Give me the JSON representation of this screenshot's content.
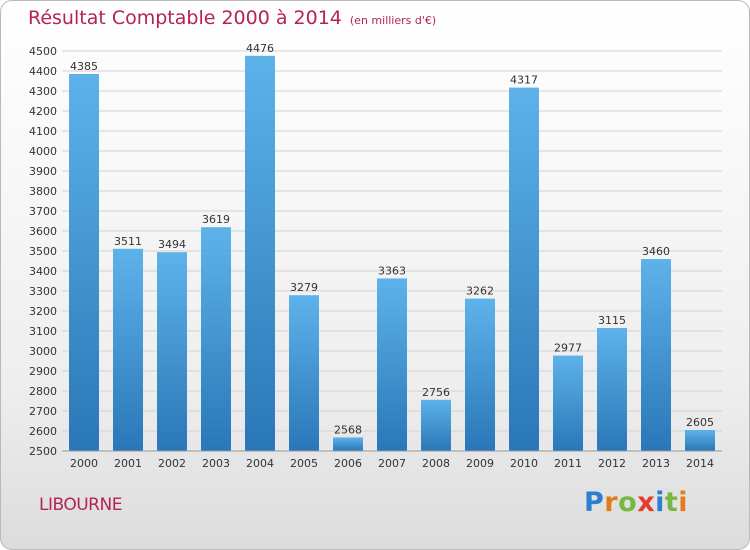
{
  "header": {
    "title": "Résultat Comptable 2000 à 2014",
    "subtitle": "(en milliers d'€)"
  },
  "footer": {
    "city": "LIBOURNE",
    "logo_letters": [
      "P",
      "r",
      "o",
      "x",
      "i",
      "t",
      "i"
    ]
  },
  "colors": {
    "title": "#b5244f",
    "bar_top": "#5eb2ea",
    "bar_bottom": "#2977b8",
    "grid": "#d2d2d2"
  },
  "chart_data": {
    "type": "bar",
    "categories": [
      "2000",
      "2001",
      "2002",
      "2003",
      "2004",
      "2005",
      "2006",
      "2007",
      "2008",
      "2009",
      "2010",
      "2011",
      "2012",
      "2013",
      "2014"
    ],
    "values": [
      4385,
      3511,
      3494,
      3619,
      4476,
      3279,
      2568,
      3363,
      2756,
      3262,
      4317,
      2977,
      3115,
      3460,
      2605
    ],
    "title": "Résultat Comptable 2000 à 2014",
    "subtitle": "(en milliers d'€)",
    "ylim": [
      2500,
      4500
    ],
    "ytick_step": 100,
    "grid": true,
    "legend": "none"
  }
}
